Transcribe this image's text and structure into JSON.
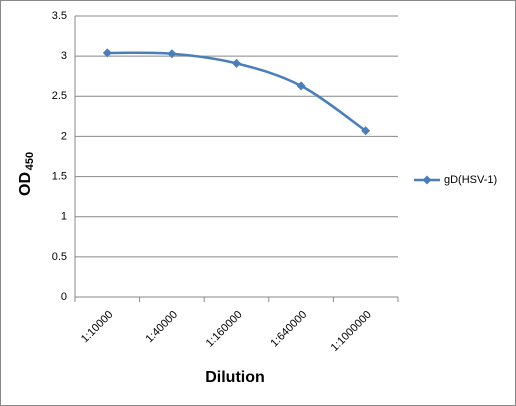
{
  "chart_data": {
    "type": "line",
    "x_label": "Dilution",
    "y_label": "OD",
    "y_label_sub": "450",
    "categories": [
      "1:10000",
      "1:40000",
      "1:160000",
      "1:640000",
      "1:1000000"
    ],
    "series": [
      {
        "name": "gD(HSV-1)",
        "color": "#4a7ebb",
        "values": [
          3.04,
          3.03,
          2.91,
          2.63,
          2.07
        ]
      }
    ],
    "ylim": [
      0,
      3.5
    ],
    "yticks": [
      0,
      0.5,
      1,
      1.5,
      2,
      2.5,
      3,
      3.5
    ],
    "grid": true,
    "legend": "right"
  }
}
